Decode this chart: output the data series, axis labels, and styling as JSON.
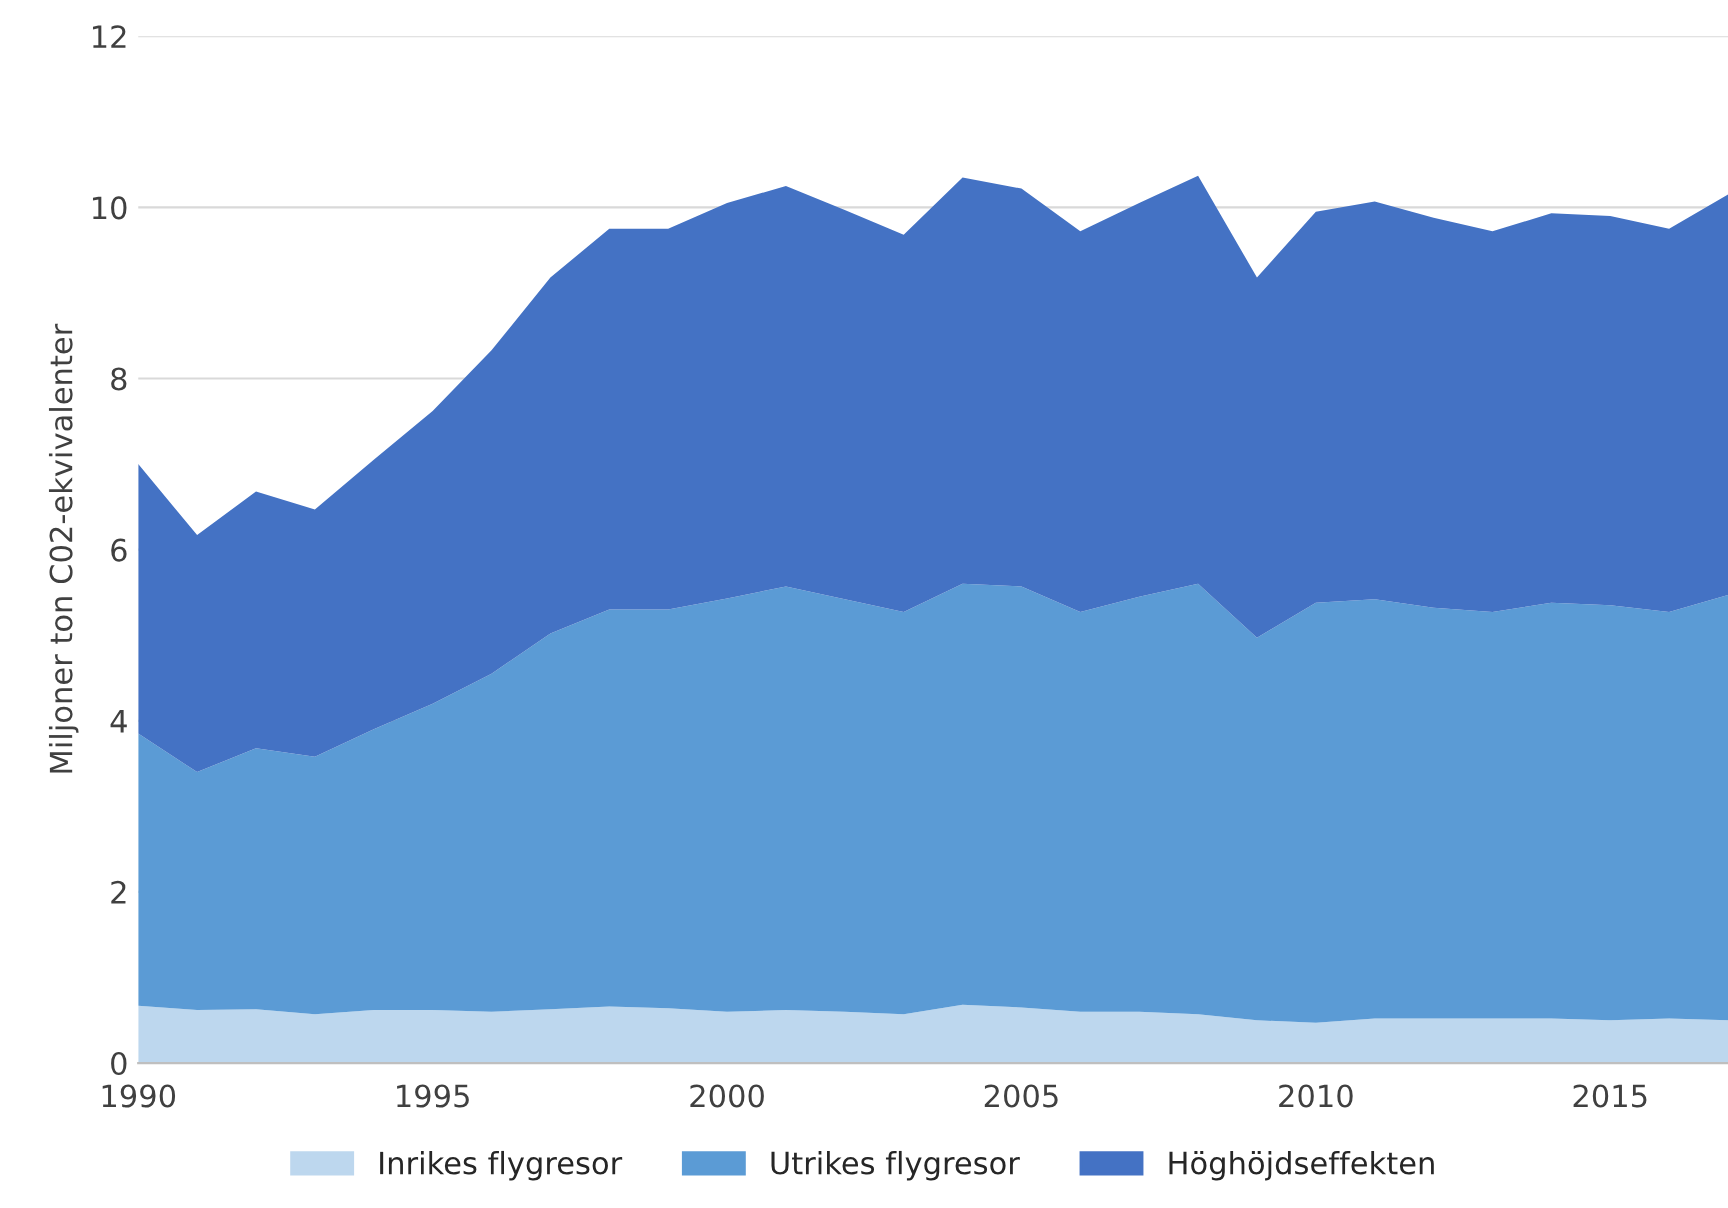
{
  "chart_data": {
    "type": "area",
    "stacked": true,
    "ylabel": "Miljoner ton C02-ekvivalenter",
    "x": [
      1990,
      1991,
      1992,
      1993,
      1994,
      1995,
      1996,
      1997,
      1998,
      1999,
      2000,
      2001,
      2002,
      2003,
      2004,
      2005,
      2006,
      2007,
      2008,
      2009,
      2010,
      2011,
      2012,
      2013,
      2014,
      2015,
      2016,
      2017
    ],
    "series": [
      {
        "name": "Inrikes flygresor",
        "color": "#bdd7ee",
        "values": [
          0.67,
          0.62,
          0.63,
          0.57,
          0.62,
          0.62,
          0.6,
          0.63,
          0.66,
          0.64,
          0.6,
          0.62,
          0.6,
          0.57,
          0.68,
          0.65,
          0.6,
          0.6,
          0.57,
          0.5,
          0.47,
          0.52,
          0.52,
          0.52,
          0.52,
          0.5,
          0.52,
          0.5
        ]
      },
      {
        "name": "Utrikes flygresor",
        "color": "#5b9bd5",
        "values": [
          3.18,
          2.78,
          3.05,
          3.01,
          3.28,
          3.58,
          3.95,
          4.39,
          4.64,
          4.66,
          4.83,
          4.95,
          4.82,
          4.7,
          4.92,
          4.92,
          4.67,
          4.85,
          5.03,
          4.47,
          4.91,
          4.9,
          4.8,
          4.75,
          4.86,
          4.85,
          4.75,
          4.97
        ]
      },
      {
        "name": "Höghöjdseffekten",
        "color": "#4472c4",
        "values": [
          3.15,
          2.77,
          3.0,
          2.89,
          3.15,
          3.42,
          3.78,
          4.16,
          4.45,
          4.45,
          4.62,
          4.68,
          4.55,
          4.41,
          4.75,
          4.65,
          4.45,
          4.6,
          4.77,
          4.21,
          4.57,
          4.65,
          4.56,
          4.45,
          4.55,
          4.55,
          4.48,
          4.68
        ]
      }
    ],
    "xlim": [
      1990,
      2017
    ],
    "xticks": [
      1990,
      1995,
      2000,
      2005,
      2010,
      2015
    ],
    "ylim": [
      0,
      12
    ],
    "yticks": [
      0,
      2,
      4,
      6,
      8,
      10,
      12
    ],
    "grid": "y",
    "legend": "bottom"
  }
}
